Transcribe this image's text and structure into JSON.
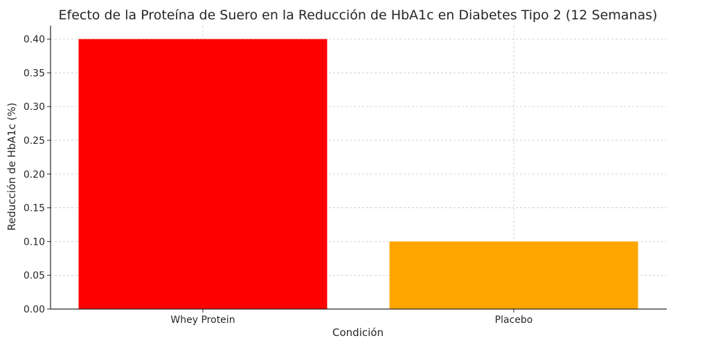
{
  "chart_data": {
    "type": "bar",
    "title": "Efecto de la Proteína de Suero en la Reducción de HbA1c en Diabetes Tipo 2 (12 Semanas)",
    "xlabel": "Condición",
    "ylabel": "Reducción de HbA1c (%)",
    "categories": [
      "Whey Protein",
      "Placebo"
    ],
    "values": [
      0.4,
      0.1
    ],
    "colors": [
      "#ff0000",
      "#ffa500"
    ],
    "ylim": [
      0,
      0.42
    ],
    "yticks": [
      "0.00",
      "0.05",
      "0.10",
      "0.15",
      "0.20",
      "0.25",
      "0.30",
      "0.35",
      "0.40"
    ],
    "grid": true,
    "legend": "none"
  }
}
